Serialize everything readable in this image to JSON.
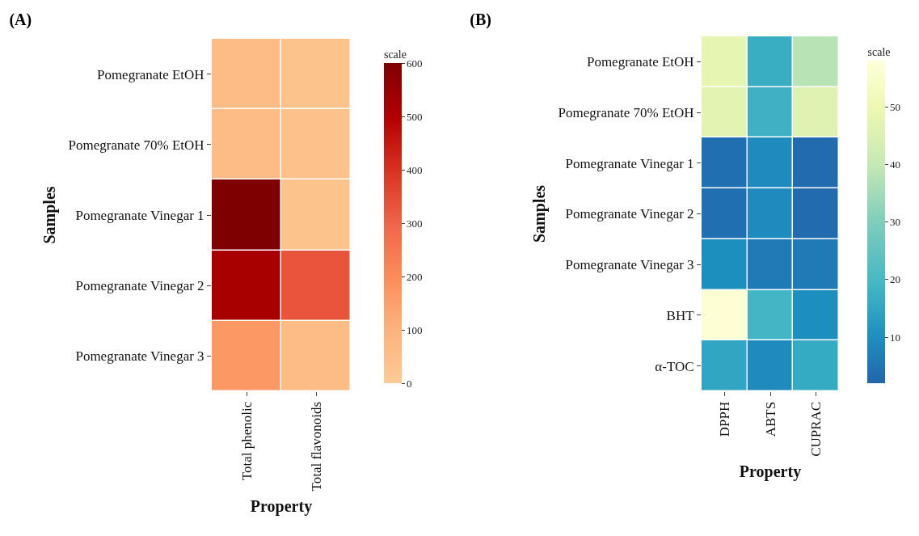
{
  "chart_data": [
    {
      "type": "heatmap",
      "title": "(A)",
      "xlabel": "Property",
      "ylabel": "Samples",
      "clabel": "scale",
      "categories": [
        "Total phenolic",
        "Total flavonoids"
      ],
      "y_categories": [
        "Pomegranate EtOH",
        "Pomegranate 70% EtOH",
        "Pomegranate Vinegar 1",
        "Pomegranate Vinegar 2",
        "Pomegranate Vinegar 3"
      ],
      "cells": [
        [
          60,
          30
        ],
        [
          60,
          40
        ],
        [
          600,
          30
        ],
        [
          520,
          330
        ],
        [
          170,
          60
        ]
      ],
      "clim": [
        0,
        600
      ],
      "cticks": [
        0,
        100,
        200,
        300,
        400,
        500,
        600
      ]
    },
    {
      "type": "heatmap",
      "title": "(B)",
      "xlabel": "Property",
      "ylabel": "Samples",
      "clabel": "scale",
      "categories": [
        "DPPH",
        "ABTS",
        "CUPRAC"
      ],
      "y_categories": [
        "Pomegranate EtOH",
        "Pomegranate 70% EtOH",
        "Pomegranate Vinegar 1",
        "Pomegranate Vinegar 2",
        "Pomegranate Vinegar 3",
        "BHT",
        "α-TOC"
      ],
      "cells": [
        [
          48,
          17,
          38
        ],
        [
          47,
          18,
          46
        ],
        [
          4,
          9,
          3
        ],
        [
          4,
          9,
          3
        ],
        [
          10,
          6,
          6
        ],
        [
          57,
          19,
          10
        ],
        [
          15,
          9,
          16
        ]
      ],
      "clim": [
        2,
        58
      ],
      "cticks": [
        10,
        20,
        30,
        40,
        50
      ]
    }
  ]
}
